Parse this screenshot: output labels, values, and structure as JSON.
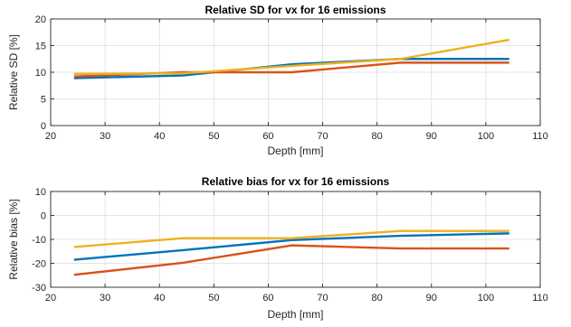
{
  "chart_data": [
    {
      "type": "line",
      "title": "Relative SD for vx for 16 emissions",
      "xlabel": "Depth [mm]",
      "ylabel": "Relative SD [%]",
      "xlim": [
        20,
        110
      ],
      "ylim": [
        0,
        20
      ],
      "xticks": [
        20,
        30,
        40,
        50,
        60,
        70,
        80,
        90,
        100,
        110
      ],
      "yticks": [
        0,
        5,
        10,
        15,
        20
      ],
      "grid": true,
      "x": [
        24.3,
        44.3,
        64.3,
        84.3,
        104.3
      ],
      "series": [
        {
          "color": "#0072BD",
          "values": [
            8.9,
            9.4,
            11.5,
            12.5,
            12.5
          ]
        },
        {
          "color": "#D95319",
          "values": [
            9.2,
            10.0,
            10.0,
            11.8,
            11.8
          ]
        },
        {
          "color": "#EDB120",
          "values": [
            9.7,
            9.8,
            11.2,
            12.5,
            16.1
          ]
        }
      ]
    },
    {
      "type": "line",
      "title": "Relative bias for vx for 16 emissions",
      "xlabel": "Depth [mm]",
      "ylabel": "Relative bias [%]",
      "xlim": [
        20,
        110
      ],
      "ylim": [
        -30,
        10
      ],
      "xticks": [
        20,
        30,
        40,
        50,
        60,
        70,
        80,
        90,
        100,
        110
      ],
      "yticks": [
        -30,
        -20,
        -10,
        0,
        10
      ],
      "grid": true,
      "x": [
        24.3,
        44.3,
        64.3,
        84.3,
        104.3
      ],
      "series": [
        {
          "color": "#0072BD",
          "values": [
            -18.5,
            -14.5,
            -10.3,
            -8.5,
            -7.5
          ]
        },
        {
          "color": "#D95319",
          "values": [
            -24.8,
            -19.8,
            -12.5,
            -13.8,
            -13.8
          ]
        },
        {
          "color": "#EDB120",
          "values": [
            -13.2,
            -9.5,
            -9.5,
            -6.5,
            -6.5
          ]
        }
      ]
    }
  ]
}
